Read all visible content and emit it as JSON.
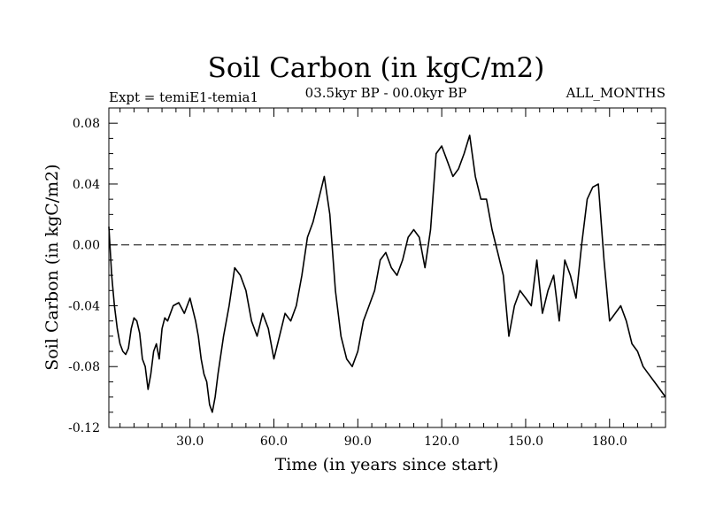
{
  "chart_data": {
    "type": "line",
    "title": "Soil Carbon (in kgC/m2)",
    "experiment_label": "Expt = temiE1-temia1",
    "period_label": "03.5kyr BP - 00.0kyr BP",
    "season_label": "ALL_MONTHS",
    "xlabel": "Time (in years since start)",
    "ylabel": "Soil Carbon (in kgC/m2)",
    "xlim": [
      1,
      200
    ],
    "ylim": [
      -0.12,
      0.09
    ],
    "x_ticks": [
      30,
      60,
      90,
      120,
      150,
      180
    ],
    "x_tick_labels": [
      "30.0",
      "60.0",
      "90.0",
      "120.0",
      "150.0",
      "180.0"
    ],
    "y_ticks": [
      -0.12,
      -0.08,
      -0.04,
      0.0,
      0.04,
      0.08
    ],
    "y_tick_labels": [
      "-0.12",
      "-0.08",
      "-0.04",
      "0.00",
      "0.04",
      "0.08"
    ],
    "reference_line": {
      "y": 0.0,
      "style": "dashed"
    },
    "grid": false,
    "series": [
      {
        "name": "Soil Carbon",
        "x": [
          1,
          2,
          3,
          4,
          5,
          6,
          7,
          8,
          9,
          10,
          11,
          12,
          13,
          14,
          15,
          16,
          17,
          18,
          19,
          20,
          21,
          22,
          24,
          26,
          28,
          30,
          32,
          33,
          34,
          35,
          36,
          37,
          38,
          39,
          40,
          42,
          44,
          46,
          48,
          50,
          52,
          54,
          56,
          58,
          60,
          62,
          64,
          66,
          68,
          70,
          72,
          74,
          76,
          78,
          80,
          82,
          84,
          86,
          88,
          90,
          92,
          94,
          96,
          98,
          100,
          102,
          104,
          106,
          108,
          110,
          112,
          114,
          116,
          118,
          120,
          122,
          124,
          126,
          128,
          130,
          132,
          134,
          136,
          138,
          140,
          142,
          144,
          146,
          148,
          150,
          152,
          154,
          156,
          158,
          160,
          162,
          164,
          166,
          168,
          170,
          172,
          174,
          176,
          178,
          180,
          182,
          184,
          186,
          188,
          190,
          192,
          194,
          196,
          198,
          200
        ],
        "y": [
          0.012,
          -0.02,
          -0.04,
          -0.055,
          -0.065,
          -0.07,
          -0.072,
          -0.068,
          -0.055,
          -0.048,
          -0.05,
          -0.058,
          -0.075,
          -0.08,
          -0.095,
          -0.085,
          -0.07,
          -0.065,
          -0.075,
          -0.055,
          -0.048,
          -0.05,
          -0.04,
          -0.038,
          -0.045,
          -0.035,
          -0.05,
          -0.06,
          -0.075,
          -0.085,
          -0.09,
          -0.105,
          -0.11,
          -0.1,
          -0.085,
          -0.06,
          -0.04,
          -0.015,
          -0.02,
          -0.03,
          -0.05,
          -0.06,
          -0.045,
          -0.055,
          -0.075,
          -0.06,
          -0.045,
          -0.05,
          -0.04,
          -0.02,
          0.005,
          0.015,
          0.03,
          0.045,
          0.02,
          -0.03,
          -0.06,
          -0.075,
          -0.08,
          -0.07,
          -0.05,
          -0.04,
          -0.03,
          -0.01,
          -0.005,
          -0.015,
          -0.02,
          -0.01,
          0.005,
          0.01,
          0.005,
          -0.015,
          0.01,
          0.06,
          0.065,
          0.055,
          0.045,
          0.05,
          0.06,
          0.072,
          0.045,
          0.03,
          0.03,
          0.01,
          -0.005,
          -0.02,
          -0.06,
          -0.04,
          -0.03,
          -0.035,
          -0.04,
          -0.01,
          -0.045,
          -0.03,
          -0.02,
          -0.05,
          -0.01,
          -0.02,
          -0.035,
          0.0,
          0.03,
          0.038,
          0.04,
          -0.01,
          -0.05,
          -0.045,
          -0.04,
          -0.05,
          -0.065,
          -0.07,
          -0.08,
          -0.085,
          -0.09,
          -0.095,
          -0.1
        ]
      }
    ],
    "colors": {
      "line": "#000000",
      "axes": "#000000",
      "background": "#ffffff"
    }
  }
}
